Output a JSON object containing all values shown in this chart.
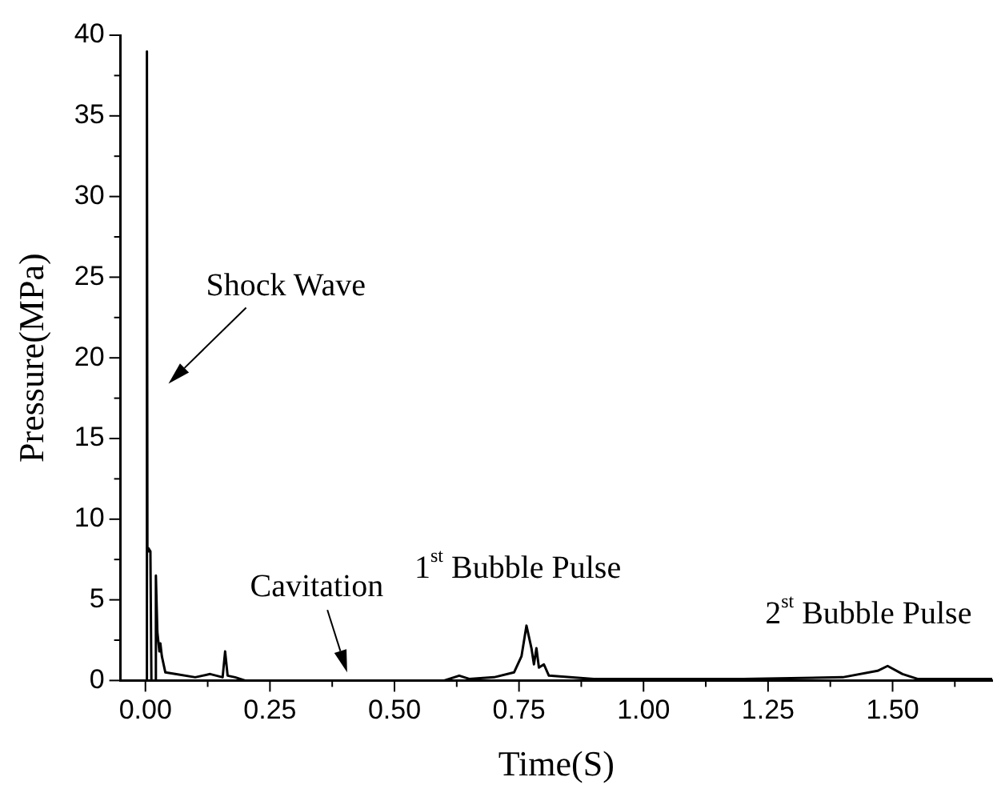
{
  "chart_data": {
    "type": "line",
    "xlabel": "Time(S)",
    "ylabel": "Pressure(MPa)",
    "x": [
      -0.005,
      0.002,
      0.003,
      0.004,
      0.006,
      0.01,
      0.012,
      0.02,
      0.021,
      0.024,
      0.028,
      0.03,
      0.033,
      0.04,
      0.06,
      0.1,
      0.13,
      0.155,
      0.16,
      0.165,
      0.18,
      0.2,
      0.4,
      0.6,
      0.63,
      0.65,
      0.7,
      0.74,
      0.755,
      0.765,
      0.775,
      0.78,
      0.785,
      0.79,
      0.8,
      0.81,
      0.9,
      1.2,
      1.4,
      1.47,
      1.49,
      1.52,
      1.55,
      1.7
    ],
    "series": [
      {
        "color": "#000000",
        "values": [
          0,
          0,
          39,
          8,
          8.2,
          8,
          0,
          0,
          6.5,
          3,
          1.8,
          2.3,
          1.5,
          0.5,
          0.4,
          0.2,
          0.4,
          0.2,
          1.8,
          0.3,
          0.2,
          0,
          0,
          0,
          0.3,
          0.1,
          0.2,
          0.5,
          1.5,
          3.4,
          2,
          1,
          2,
          0.8,
          1,
          0.3,
          0.1,
          0.1,
          0.2,
          0.6,
          0.9,
          0.4,
          0.1,
          0.1
        ]
      }
    ],
    "xlim": [
      -0.05,
      1.7
    ],
    "xticks": [
      {
        "value": 0,
        "label": "0.00"
      },
      {
        "value": 0.125,
        "label": null
      },
      {
        "value": 0.25,
        "label": "0.25"
      },
      {
        "value": 0.375,
        "label": null
      },
      {
        "value": 0.5,
        "label": "0.50"
      },
      {
        "value": 0.625,
        "label": null
      },
      {
        "value": 0.75,
        "label": "0.75"
      },
      {
        "value": 0.875,
        "label": null
      },
      {
        "value": 1,
        "label": "1.00"
      },
      {
        "value": 1.125,
        "label": null
      },
      {
        "value": 1.25,
        "label": "1.25"
      },
      {
        "value": 1.375,
        "label": null
      },
      {
        "value": 1.5,
        "label": "1.50"
      },
      {
        "value": 1.625,
        "label": null
      }
    ],
    "ylim": [
      0,
      40
    ],
    "yticks": [
      0,
      {
        "value": 2.5,
        "label": null
      },
      5,
      {
        "value": 7.5,
        "label": null
      },
      10,
      {
        "value": 12.5,
        "label": null
      },
      15,
      {
        "value": 17.5,
        "label": null
      },
      20,
      {
        "value": 22.5,
        "label": null
      },
      25,
      {
        "value": 27.5,
        "label": null
      },
      30,
      {
        "value": 32.5,
        "label": null
      },
      35,
      {
        "value": 37.5,
        "label": null
      },
      40
    ],
    "annotations": [
      "Shock Wave",
      {
        "text": "Cavitation",
        "x": 0.405,
        "y": 0.5
      },
      {
        "text": "1$^{st}$ Bubble Pulse",
        "x": 0.77,
        "y": 3.4
      },
      {
        "text": "2$^{st}$ Bubble Pulse",
        "x": 1.49,
        "y": 0.9
      }
    ],
    "grid": false,
    "legend": false,
    "marker": "none",
    "line_style": "solid"
  }
}
